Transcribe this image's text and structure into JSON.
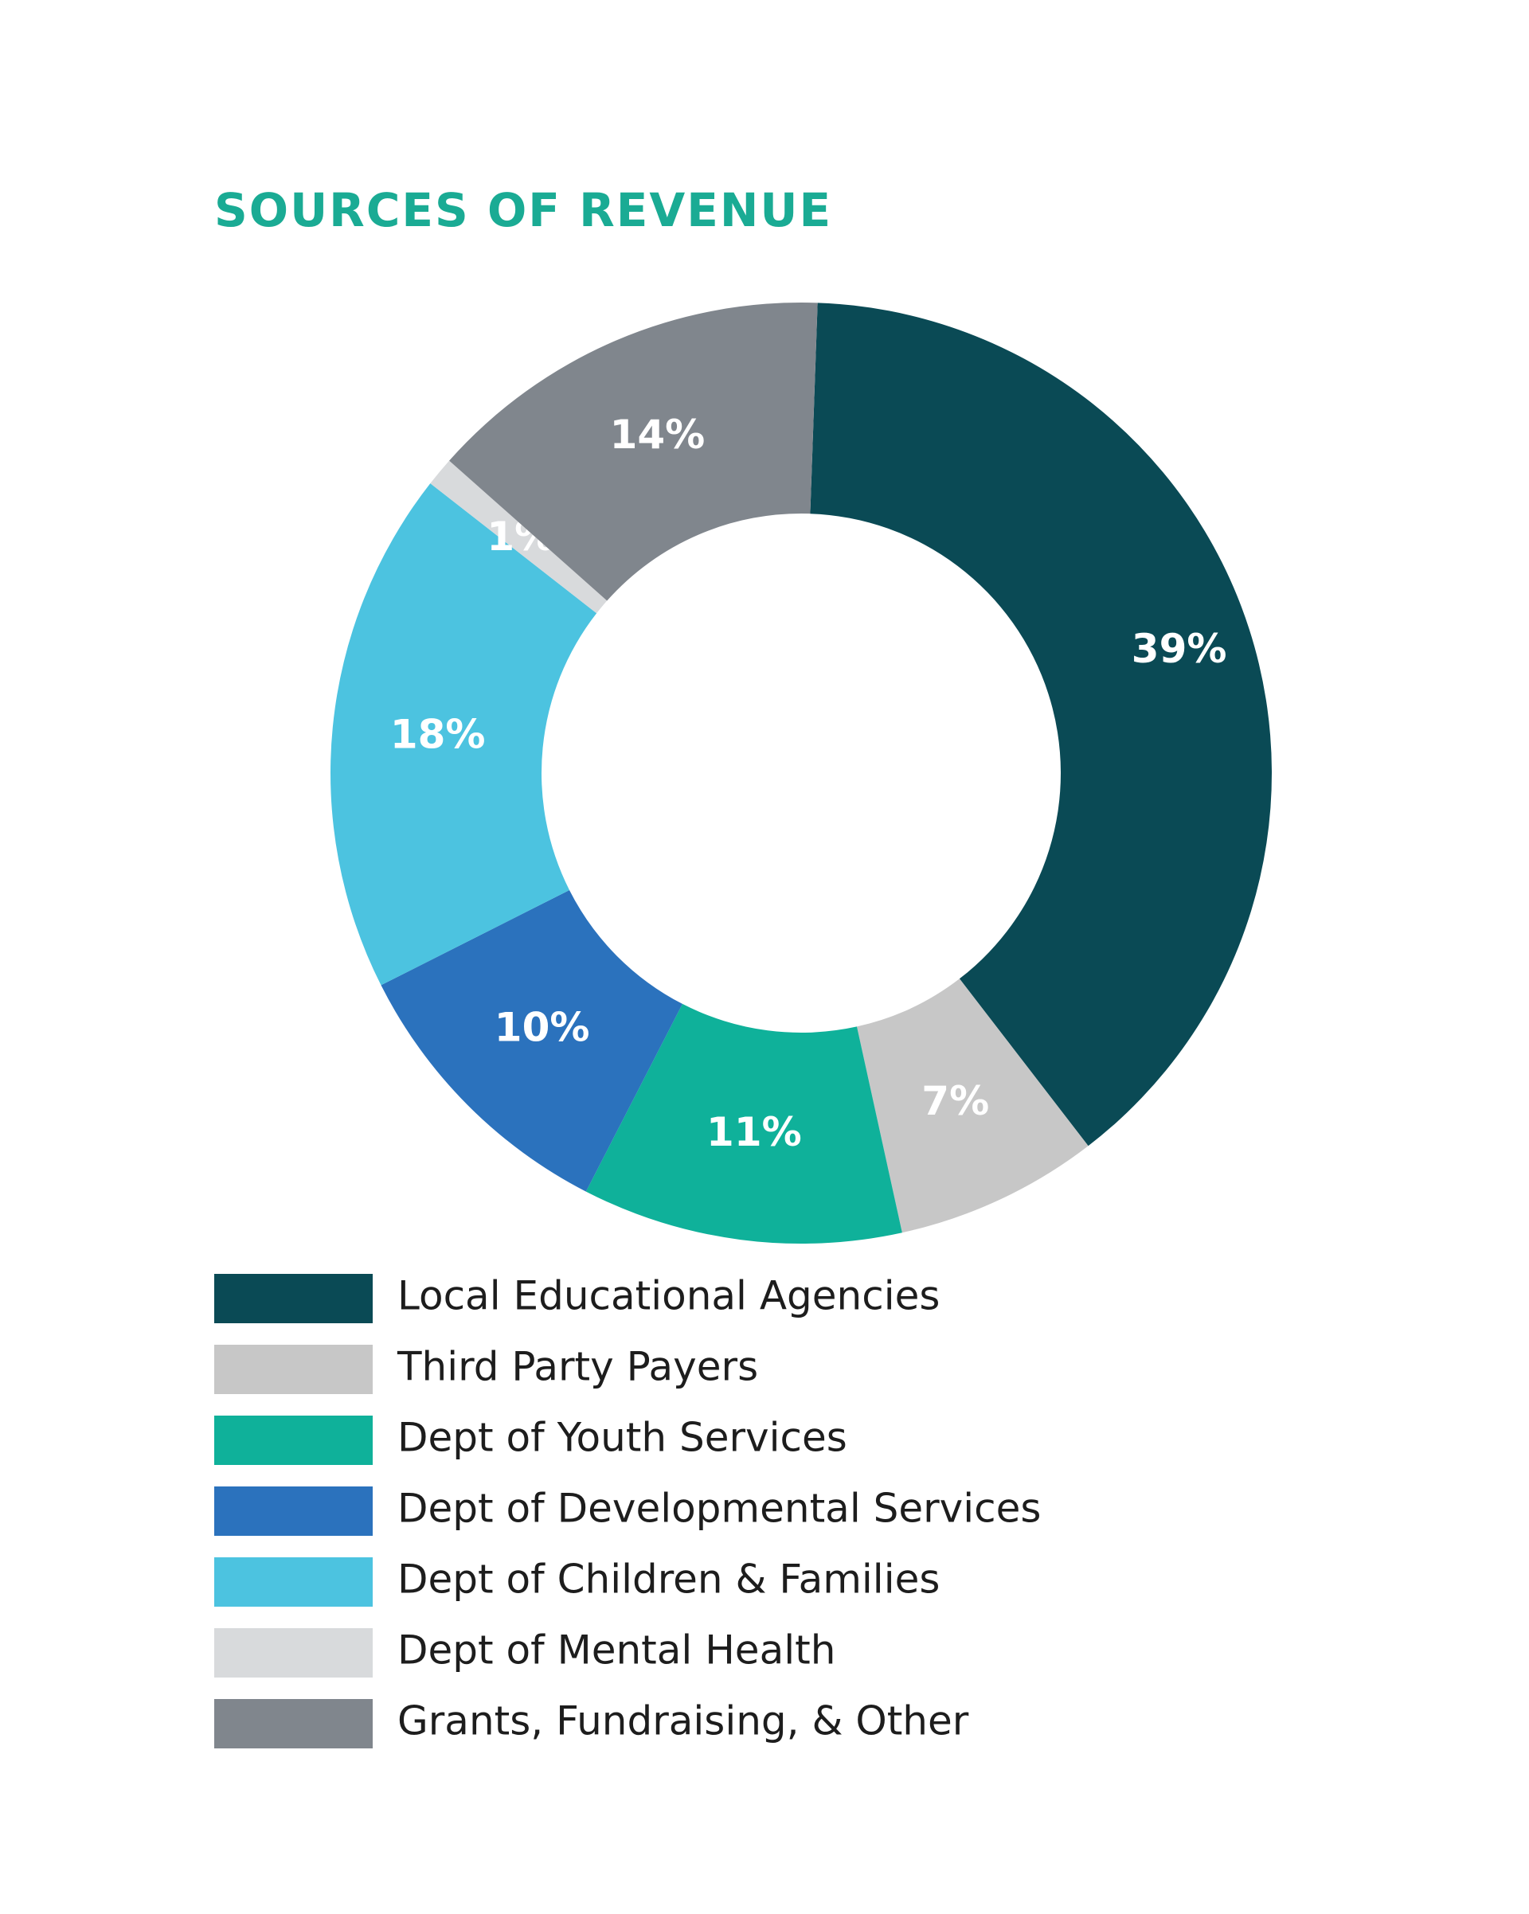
{
  "chart_data": {
    "type": "donut",
    "title": "SOURCES OF REVENUE",
    "categories": [
      "Local Educational Agencies",
      "Third Party Payers",
      "Dept of Youth Services",
      "Dept of Developmental Services",
      "Dept of Children & Families",
      "Dept of Mental Health",
      "Grants, Fundraising, & Other"
    ],
    "values": [
      39,
      7,
      11,
      10,
      18,
      1,
      14
    ],
    "value_labels": [
      "39%",
      "7%",
      "11%",
      "10%",
      "18%",
      "1%",
      "14%"
    ],
    "colors": [
      "#0a4a55",
      "#c7c7c7",
      "#0fb19a",
      "#2b72bd",
      "#4cc3e0",
      "#d8dadc",
      "#80868d"
    ]
  }
}
